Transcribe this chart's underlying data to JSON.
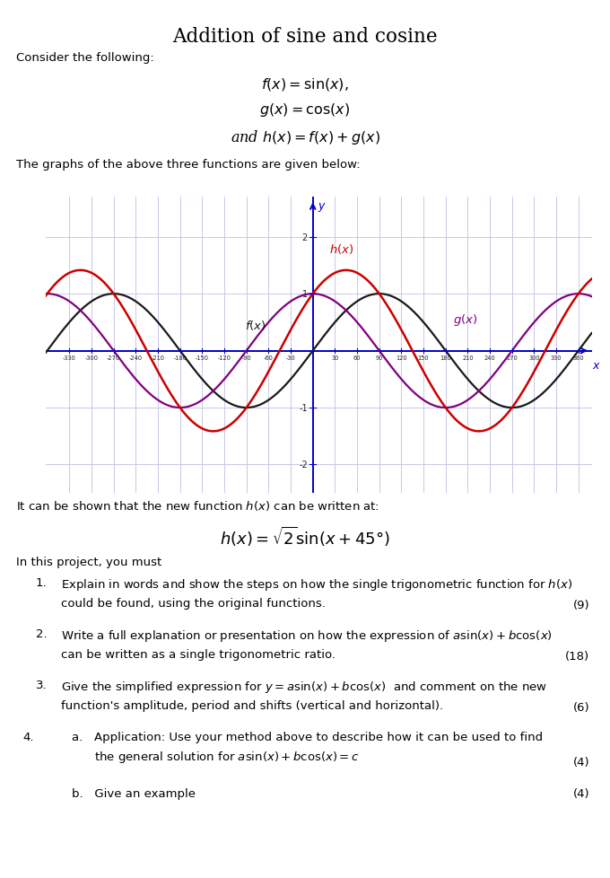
{
  "title": "Addition of sine and cosine",
  "xlim": [
    -362,
    378
  ],
  "ylim": [
    -2.5,
    2.7
  ],
  "f_color": "#1a1a1a",
  "g_color": "#800080",
  "h_color": "#cc0000",
  "axis_color": "#0000cc",
  "grid_color": "#c8c8e8",
  "x_ticks": [
    -330,
    -300,
    -270,
    -240,
    -210,
    -180,
    -150,
    -120,
    -90,
    -60,
    -30,
    30,
    60,
    90,
    120,
    150,
    180,
    210,
    240,
    270,
    300,
    330,
    360
  ],
  "y_ticks": [
    -2,
    -1,
    1,
    2
  ],
  "fig_w": 6.8,
  "fig_h": 9.79
}
